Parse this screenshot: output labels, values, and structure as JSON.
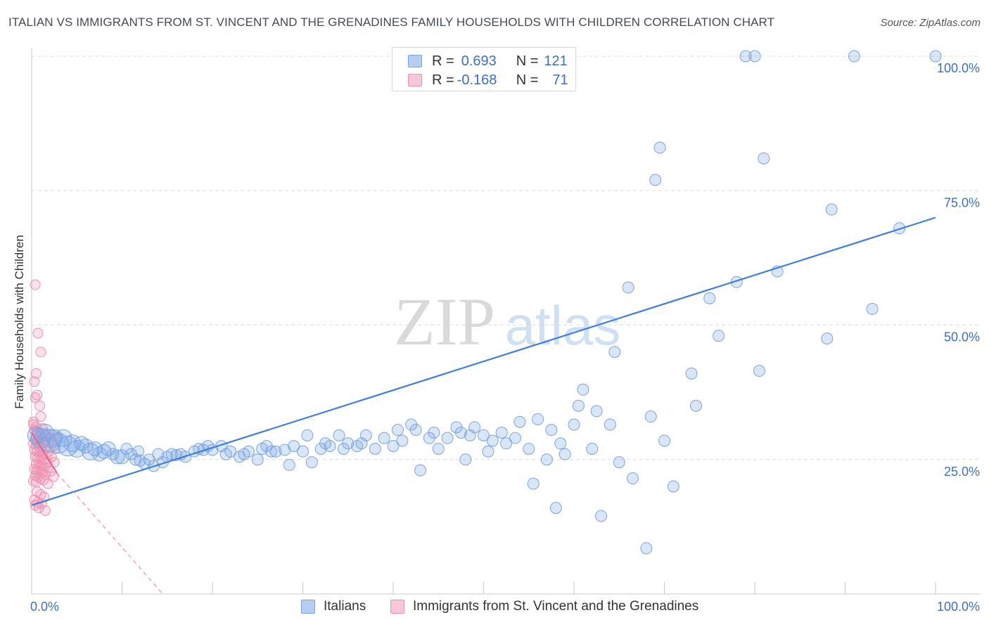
{
  "title": "ITALIAN VS IMMIGRANTS FROM ST. VINCENT AND THE GRENADINES FAMILY HOUSEHOLDS WITH CHILDREN CORRELATION CHART",
  "source": "Source: ZipAtlas.com",
  "watermark": {
    "zip": "ZIP",
    "atlas": "atlas"
  },
  "legend": {
    "rows": [
      {
        "r_label": "R =",
        "r_value": "0.693",
        "n_label": "N =",
        "n_value": "121"
      },
      {
        "r_label": "R =",
        "r_value": "-0.168",
        "n_label": "N =",
        "n_value": "71"
      }
    ]
  },
  "colors": {
    "blue": "#3f7fd8",
    "blue_fill": "rgba(120,165,230,0.28)",
    "blue_stroke": "#7aa3e0",
    "pink": "#e8608a",
    "pink_fill": "rgba(240,150,180,0.28)",
    "pink_stroke": "#ee8fb0",
    "axis_label": "#3a6fc4",
    "grid": "#dcdcdc"
  },
  "chart_data": {
    "type": "scatter",
    "title": "ITALIAN VS IMMIGRANTS FROM ST. VINCENT AND THE GRENADINES FAMILY HOUSEHOLDS WITH CHILDREN CORRELATION CHART",
    "xlabel": "",
    "ylabel": "Family Households with Children",
    "xlim": [
      0,
      100
    ],
    "ylim": [
      0,
      102
    ],
    "x_tick_labels": [
      "0.0%",
      "100.0%"
    ],
    "y_tick_labels": [
      "25.0%",
      "50.0%",
      "75.0%",
      "100.0%"
    ],
    "y_ticks": [
      25,
      50,
      75,
      100
    ],
    "grid": true,
    "legend_position": "top-center",
    "series": [
      {
        "name": "Italians",
        "r": 0.693,
        "n": 121,
        "trend": {
          "x": [
            0,
            100
          ],
          "y": [
            16.5,
            70.0
          ]
        },
        "points": [
          [
            0.5,
            29.5,
            3
          ],
          [
            1,
            29,
            4
          ],
          [
            1.5,
            30,
            3
          ],
          [
            2,
            28.5,
            5
          ],
          [
            2.5,
            29,
            3
          ],
          [
            3,
            28,
            4
          ],
          [
            3.5,
            29,
            3
          ],
          [
            4,
            27.5,
            4
          ],
          [
            4.5,
            28,
            3
          ],
          [
            5,
            27,
            3
          ],
          [
            5.5,
            28,
            2
          ],
          [
            6,
            27.5,
            2
          ],
          [
            6.5,
            26.5,
            3
          ],
          [
            7,
            27,
            2
          ],
          [
            7.5,
            26,
            2
          ],
          [
            8,
            26.5,
            2
          ],
          [
            8.5,
            27,
            2
          ],
          [
            9,
            26,
            1
          ],
          [
            9.5,
            25.5,
            2
          ],
          [
            10,
            25.5,
            2
          ],
          [
            10.5,
            27,
            1
          ],
          [
            11,
            26,
            1
          ],
          [
            11.5,
            25,
            1
          ],
          [
            12,
            24.8,
            1
          ],
          [
            12.5,
            24.2,
            1
          ],
          [
            13,
            25,
            1
          ],
          [
            14,
            26,
            1
          ],
          [
            14.5,
            24.5,
            1
          ],
          [
            15,
            25.5,
            1
          ],
          [
            15.5,
            26,
            1
          ],
          [
            16,
            25.8,
            1
          ],
          [
            16.5,
            26,
            1
          ],
          [
            17,
            25.5,
            1
          ],
          [
            18,
            26.5,
            1
          ],
          [
            18.5,
            27,
            1
          ],
          [
            19,
            26.8,
            1
          ],
          [
            19.5,
            27.5,
            1
          ],
          [
            20,
            26.8,
            1
          ],
          [
            21,
            27.5,
            1
          ],
          [
            21.5,
            26,
            1
          ],
          [
            22,
            26.5,
            1
          ],
          [
            23,
            25.5,
            1
          ],
          [
            23.5,
            26,
            1
          ],
          [
            24,
            26.5,
            1
          ],
          [
            25,
            25,
            1
          ],
          [
            25.5,
            27,
            1
          ],
          [
            26,
            27.5,
            1
          ],
          [
            27,
            26.5,
            1
          ],
          [
            28,
            26.8,
            1
          ],
          [
            28.5,
            24,
            1
          ],
          [
            29,
            27.5,
            1
          ],
          [
            30,
            26.5,
            1
          ],
          [
            30.5,
            29.5,
            1
          ],
          [
            31,
            24.5,
            1
          ],
          [
            32,
            27,
            1
          ],
          [
            32.5,
            28,
            1
          ],
          [
            33,
            27.5,
            1
          ],
          [
            34,
            29.5,
            1
          ],
          [
            34.5,
            27,
            1
          ],
          [
            35,
            28,
            1
          ],
          [
            36,
            27.5,
            1
          ],
          [
            37,
            29.5,
            1
          ],
          [
            38,
            27,
            1
          ],
          [
            39,
            29,
            1
          ],
          [
            40,
            27.5,
            1
          ],
          [
            40.5,
            30.5,
            1
          ],
          [
            41,
            28.5,
            1
          ],
          [
            42,
            31.5,
            1
          ],
          [
            42.5,
            30.5,
            1
          ],
          [
            43,
            23,
            1
          ],
          [
            44,
            29,
            1
          ],
          [
            44.5,
            30,
            1
          ],
          [
            45,
            27,
            1
          ],
          [
            46,
            29,
            1
          ],
          [
            47,
            31,
            1
          ],
          [
            47.5,
            30,
            1
          ],
          [
            48,
            25,
            1
          ],
          [
            48.5,
            29.5,
            1
          ],
          [
            49,
            31,
            1
          ],
          [
            50,
            29.5,
            1
          ],
          [
            50.5,
            26.5,
            1
          ],
          [
            51,
            28.5,
            1
          ],
          [
            52,
            30,
            1
          ],
          [
            52.5,
            28,
            1
          ],
          [
            53.5,
            29,
            1
          ],
          [
            54,
            32,
            1
          ],
          [
            55,
            27,
            1
          ],
          [
            55.5,
            20.5,
            1
          ],
          [
            56,
            32.5,
            1
          ],
          [
            57,
            25,
            1
          ],
          [
            57.5,
            30.5,
            1
          ],
          [
            58,
            16,
            1
          ],
          [
            58.5,
            28,
            1
          ],
          [
            59,
            26,
            1
          ],
          [
            60,
            31.5,
            1
          ],
          [
            60.5,
            35,
            1
          ],
          [
            61,
            38,
            1
          ],
          [
            62,
            27,
            1
          ],
          [
            62.5,
            34,
            1
          ],
          [
            63,
            14.5,
            1
          ],
          [
            64,
            31.5,
            1
          ],
          [
            64.5,
            45,
            1
          ],
          [
            65,
            24.5,
            1
          ],
          [
            66,
            57,
            1
          ],
          [
            66.5,
            21.5,
            1
          ],
          [
            68,
            8.5,
            1
          ],
          [
            68.5,
            33,
            1
          ],
          [
            69,
            77,
            1
          ],
          [
            69.5,
            83,
            1
          ],
          [
            70,
            28.5,
            1
          ],
          [
            71,
            20,
            1
          ],
          [
            73,
            41,
            1
          ],
          [
            73.5,
            35,
            1
          ],
          [
            75,
            55,
            1
          ],
          [
            76,
            48,
            1
          ],
          [
            78,
            58,
            1
          ],
          [
            80.5,
            41.5,
            1
          ],
          [
            81,
            81,
            1
          ],
          [
            82.5,
            60,
            1
          ],
          [
            88,
            47.5,
            1
          ],
          [
            88.5,
            71.5,
            1
          ],
          [
            93,
            53,
            1
          ],
          [
            96,
            68,
            1
          ],
          [
            100,
            100,
            1
          ],
          [
            79,
            100,
            1
          ],
          [
            80,
            100,
            1
          ],
          [
            91,
            100,
            1
          ],
          [
            26.5,
            26.5,
            1
          ],
          [
            36.5,
            28,
            1
          ],
          [
            11.8,
            26.5,
            1
          ],
          [
            13.5,
            23.8,
            1
          ]
        ]
      },
      {
        "name": "Immigrants from St. Vincent and the Grenadines",
        "r": -0.168,
        "n": 71,
        "trend": {
          "x": [
            0,
            2.8
          ],
          "y": [
            23.5,
            22.5
          ]
        },
        "trend_dashed": {
          "x": [
            2.8,
            14.5
          ],
          "y": [
            22.5,
            0
          ]
        },
        "points": [
          [
            0.4,
            57.5
          ],
          [
            0.7,
            48.5
          ],
          [
            1,
            45
          ],
          [
            0.5,
            41
          ],
          [
            0.3,
            39.5
          ],
          [
            0.6,
            37
          ],
          [
            0.4,
            36.5
          ],
          [
            1,
            33
          ],
          [
            0.2,
            32
          ],
          [
            0.5,
            31
          ],
          [
            0.3,
            30.5
          ],
          [
            0.6,
            30
          ],
          [
            0.9,
            29.5
          ],
          [
            1.2,
            29
          ],
          [
            0.4,
            28.8
          ],
          [
            0.7,
            28.5
          ],
          [
            1.5,
            28.3
          ],
          [
            0.2,
            28
          ],
          [
            0.5,
            27.8
          ],
          [
            0.8,
            27.5
          ],
          [
            1.1,
            27.2
          ],
          [
            1.4,
            27
          ],
          [
            0.3,
            26.8
          ],
          [
            0.6,
            26.5
          ],
          [
            0.9,
            26.3
          ],
          [
            1.2,
            26
          ],
          [
            1.6,
            25.8
          ],
          [
            0.4,
            25.5
          ],
          [
            0.7,
            25.3
          ],
          [
            1,
            25
          ],
          [
            1.3,
            24.8
          ],
          [
            1.7,
            24.5
          ],
          [
            0.5,
            24.2
          ],
          [
            0.8,
            24
          ],
          [
            1.1,
            23.8
          ],
          [
            1.4,
            23.5
          ],
          [
            0.3,
            23.2
          ],
          [
            0.6,
            23
          ],
          [
            0.9,
            22.8
          ],
          [
            1.2,
            22.5
          ],
          [
            1.5,
            22.2
          ],
          [
            0.4,
            22
          ],
          [
            0.7,
            21.8
          ],
          [
            1,
            21.5
          ],
          [
            1.3,
            21.2
          ],
          [
            0.2,
            21
          ],
          [
            0.5,
            20.8
          ],
          [
            1.8,
            20.5
          ],
          [
            0.6,
            19
          ],
          [
            1,
            18.5
          ],
          [
            1.4,
            18
          ],
          [
            0.3,
            17.5
          ],
          [
            0.7,
            17
          ],
          [
            1.1,
            16.8
          ],
          [
            0.4,
            16.5
          ],
          [
            0.8,
            16
          ],
          [
            1.5,
            15.5
          ],
          [
            0.2,
            31.5
          ],
          [
            2,
            29
          ],
          [
            2.3,
            28
          ],
          [
            2.6,
            27
          ],
          [
            1.9,
            26.5
          ],
          [
            2.2,
            25.5
          ],
          [
            2.5,
            24.5
          ],
          [
            1.8,
            23.5
          ],
          [
            2.1,
            22.8
          ],
          [
            2.4,
            21.8
          ],
          [
            0.9,
            35
          ],
          [
            1.2,
            30.8
          ],
          [
            1.6,
            29.8
          ],
          [
            2.8,
            29.2
          ]
        ]
      }
    ]
  }
}
